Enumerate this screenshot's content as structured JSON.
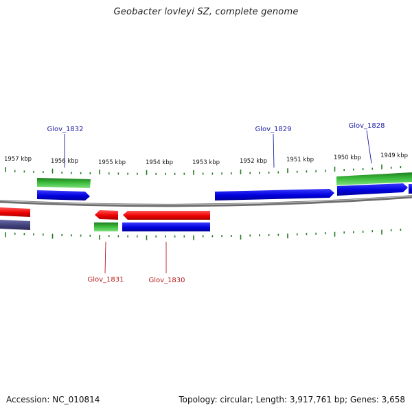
{
  "title": "Geobacter lovleyi SZ, complete genome",
  "footer": {
    "accession": "Accession: NC_010814",
    "summary": "Topology: circular; Length: 3,917,761 bp; Genes: 3,658"
  },
  "axis": {
    "unit": "kbp",
    "tick_labels": [
      "1957 kbp",
      "1956 kbp",
      "1955 kbp",
      "1954 kbp",
      "1953 kbp",
      "1952 kbp",
      "1951 kbp",
      "1950 kbp",
      "1949 kbp"
    ]
  },
  "gene_labels": {
    "plus": [
      "Glov_1832",
      "Glov_1829",
      "Glov_1828"
    ],
    "minus": [
      "Glov_1831",
      "Glov_1830"
    ]
  },
  "colors": {
    "backbone": "#888888",
    "tick": "#227722",
    "plus_label": "#1a1aa6",
    "minus_label": "#b81a1a",
    "cds": "#1111dd",
    "cds_minus": "#ee1111",
    "gene": "#2a9a2a",
    "other": "#4a4a88"
  }
}
